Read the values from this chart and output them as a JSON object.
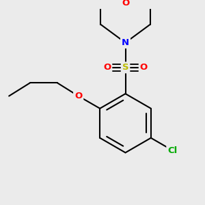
{
  "background_color": "#ebebeb",
  "bond_color": "#000000",
  "atom_colors": {
    "O": "#ff0000",
    "N": "#0000ff",
    "S": "#bbbb00",
    "Cl": "#00aa00",
    "C": "#000000"
  },
  "line_width": 1.5,
  "font_size_atom": 9.5,
  "figsize": [
    3.0,
    3.0
  ],
  "dpi": 100
}
